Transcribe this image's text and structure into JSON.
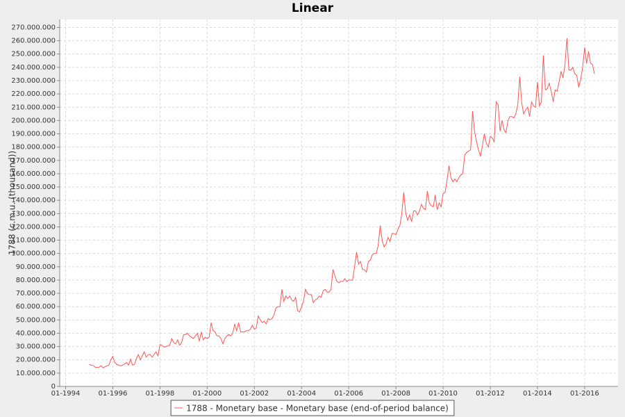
{
  "chart_data": {
    "type": "line",
    "title": "Linear",
    "y_label": "1788 (c.m.u. (thousand))",
    "x": [
      "1995-01",
      "1995-02",
      "1995-03",
      "1995-04",
      "1995-05",
      "1995-06",
      "1995-07",
      "1995-08",
      "1995-09",
      "1995-10",
      "1995-11",
      "1995-12",
      "1996-01",
      "1996-02",
      "1996-03",
      "1996-04",
      "1996-05",
      "1996-06",
      "1996-07",
      "1996-08",
      "1996-09",
      "1996-10",
      "1996-11",
      "1996-12",
      "1997-01",
      "1997-02",
      "1997-03",
      "1997-04",
      "1997-05",
      "1997-06",
      "1997-07",
      "1997-08",
      "1997-09",
      "1997-10",
      "1997-11",
      "1997-12",
      "1998-01",
      "1998-02",
      "1998-03",
      "1998-04",
      "1998-05",
      "1998-06",
      "1998-07",
      "1998-08",
      "1998-09",
      "1998-10",
      "1998-11",
      "1998-12",
      "1999-01",
      "1999-02",
      "1999-03",
      "1999-04",
      "1999-05",
      "1999-06",
      "1999-07",
      "1999-08",
      "1999-09",
      "1999-10",
      "1999-11",
      "1999-12",
      "2000-01",
      "2000-02",
      "2000-03",
      "2000-04",
      "2000-05",
      "2000-06",
      "2000-07",
      "2000-08",
      "2000-09",
      "2000-10",
      "2000-11",
      "2000-12",
      "2001-01",
      "2001-02",
      "2001-03",
      "2001-04",
      "2001-05",
      "2001-06",
      "2001-07",
      "2001-08",
      "2001-09",
      "2001-10",
      "2001-11",
      "2001-12",
      "2002-01",
      "2002-02",
      "2002-03",
      "2002-04",
      "2002-05",
      "2002-06",
      "2002-07",
      "2002-08",
      "2002-09",
      "2002-10",
      "2002-11",
      "2002-12",
      "2003-01",
      "2003-02",
      "2003-03",
      "2003-04",
      "2003-05",
      "2003-06",
      "2003-07",
      "2003-08",
      "2003-09",
      "2003-10",
      "2003-11",
      "2003-12",
      "2004-01",
      "2004-02",
      "2004-03",
      "2004-04",
      "2004-05",
      "2004-06",
      "2004-07",
      "2004-08",
      "2004-09",
      "2004-10",
      "2004-11",
      "2004-12",
      "2005-01",
      "2005-02",
      "2005-03",
      "2005-04",
      "2005-05",
      "2005-06",
      "2005-07",
      "2005-08",
      "2005-09",
      "2005-10",
      "2005-11",
      "2005-12",
      "2006-01",
      "2006-02",
      "2006-03",
      "2006-04",
      "2006-05",
      "2006-06",
      "2006-07",
      "2006-08",
      "2006-09",
      "2006-10",
      "2006-11",
      "2006-12",
      "2007-01",
      "2007-02",
      "2007-03",
      "2007-04",
      "2007-05",
      "2007-06",
      "2007-07",
      "2007-08",
      "2007-09",
      "2007-10",
      "2007-11",
      "2007-12",
      "2008-01",
      "2008-02",
      "2008-03",
      "2008-04",
      "2008-05",
      "2008-06",
      "2008-07",
      "2008-08",
      "2008-09",
      "2008-10",
      "2008-11",
      "2008-12",
      "2009-01",
      "2009-02",
      "2009-03",
      "2009-04",
      "2009-05",
      "2009-06",
      "2009-07",
      "2009-08",
      "2009-09",
      "2009-10",
      "2009-11",
      "2009-12",
      "2010-01",
      "2010-02",
      "2010-03",
      "2010-04",
      "2010-05",
      "2010-06",
      "2010-07",
      "2010-08",
      "2010-09",
      "2010-10",
      "2010-11",
      "2010-12",
      "2011-01",
      "2011-02",
      "2011-03",
      "2011-04",
      "2011-05",
      "2011-06",
      "2011-07",
      "2011-08",
      "2011-09",
      "2011-10",
      "2011-11",
      "2011-12",
      "2012-01",
      "2012-02",
      "2012-03",
      "2012-04",
      "2012-05",
      "2012-06",
      "2012-07",
      "2012-08",
      "2012-09",
      "2012-10",
      "2012-11",
      "2012-12",
      "2013-01",
      "2013-02",
      "2013-03",
      "2013-04",
      "2013-05",
      "2013-06",
      "2013-07",
      "2013-08",
      "2013-09",
      "2013-10",
      "2013-11",
      "2013-12",
      "2014-01",
      "2014-02",
      "2014-03",
      "2014-04",
      "2014-05",
      "2014-06",
      "2014-07",
      "2014-08",
      "2014-09",
      "2014-10",
      "2014-11",
      "2014-12",
      "2015-01",
      "2015-02",
      "2015-03",
      "2015-04",
      "2015-05",
      "2015-06",
      "2015-07",
      "2015-08",
      "2015-09",
      "2015-10",
      "2015-11",
      "2015-12",
      "2016-01",
      "2016-02",
      "2016-03",
      "2016-04",
      "2016-05",
      "2016-06"
    ],
    "series": [
      {
        "name": "1788 - Monetary base - Monetary base (end-of-period balance)",
        "color": "#ff5555",
        "values": [
          16500000,
          16000000,
          15800000,
          14500000,
          14200000,
          14500000,
          15500000,
          14000000,
          14800000,
          15500000,
          16000000,
          20000000,
          22500000,
          18000000,
          16500000,
          16000000,
          15500000,
          16000000,
          17000000,
          18000000,
          16000000,
          20500000,
          16000000,
          16500000,
          21000000,
          24000000,
          20000000,
          23000000,
          26000000,
          22000000,
          24000000,
          24000000,
          22000000,
          24000000,
          26000000,
          23000000,
          31500000,
          31000000,
          29500000,
          30000000,
          30500000,
          31000000,
          36000000,
          33000000,
          32000000,
          35000000,
          31000000,
          33000000,
          39000000,
          39000000,
          40000000,
          38000000,
          37000000,
          36000000,
          38000000,
          40000000,
          34000000,
          41000000,
          35000000,
          37000000,
          36000000,
          37000000,
          48000000,
          42000000,
          41000000,
          38000000,
          38000000,
          36000000,
          32000000,
          36000000,
          38000000,
          39000000,
          38000000,
          40000000,
          47000000,
          42000000,
          48000000,
          41000000,
          41000000,
          41000000,
          42000000,
          42000000,
          43000000,
          46000000,
          43000000,
          44000000,
          53000000,
          50000000,
          48000000,
          49000000,
          47000000,
          51000000,
          50000000,
          51000000,
          54000000,
          59000000,
          60000000,
          60000000,
          73000000,
          64000000,
          68000000,
          66000000,
          68000000,
          65000000,
          64000000,
          67000000,
          57000000,
          56000000,
          60000000,
          64000000,
          73000000,
          70000000,
          69000000,
          69000000,
          63000000,
          65000000,
          66000000,
          68000000,
          67000000,
          72000000,
          73000000,
          71000000,
          71000000,
          73000000,
          88000000,
          83000000,
          79000000,
          78000000,
          79000000,
          79000000,
          81000000,
          79000000,
          80000000,
          80000000,
          80000000,
          90000000,
          101000000,
          92000000,
          94000000,
          88000000,
          88000000,
          86000000,
          94000000,
          95000000,
          99000000,
          100000000,
          100000000,
          106000000,
          121000000,
          110000000,
          105000000,
          107000000,
          112000000,
          109000000,
          115000000,
          115000000,
          114000000,
          118000000,
          121000000,
          130000000,
          146000000,
          130000000,
          125000000,
          129000000,
          124000000,
          132000000,
          132000000,
          129000000,
          132000000,
          137000000,
          134000000,
          133000000,
          147000000,
          138000000,
          136000000,
          135000000,
          144000000,
          133000000,
          138000000,
          135000000,
          145000000,
          146000000,
          155000000,
          166000000,
          157000000,
          154000000,
          156000000,
          154000000,
          157000000,
          159000000,
          160000000,
          174000000,
          176000000,
          177000000,
          178000000,
          207000000,
          192000000,
          184000000,
          178000000,
          173000000,
          181000000,
          190000000,
          183000000,
          180000000,
          188000000,
          187000000,
          184000000,
          214000000,
          212000000,
          192000000,
          200000000,
          193000000,
          191000000,
          200000000,
          203000000,
          203000000,
          202000000,
          205000000,
          212000000,
          233000000,
          213000000,
          205000000,
          208000000,
          210000000,
          203000000,
          214000000,
          211000000,
          210000000,
          229000000,
          211000000,
          214000000,
          249000000,
          223000000,
          224000000,
          228000000,
          222000000,
          214000000,
          223000000,
          222000000,
          229000000,
          237000000,
          232000000,
          242000000,
          262000000,
          238000000,
          238000000,
          240000000,
          235000000,
          234000000,
          225000000,
          231000000,
          240000000,
          255000000,
          243000000,
          252000000,
          243000000,
          242000000,
          235000000
        ]
      }
    ],
    "xlim": [
      "1993-10",
      "2017-06"
    ],
    "xticks": [
      {
        "value": "1994-01",
        "label": "01-1994"
      },
      {
        "value": "1996-01",
        "label": "01-1996"
      },
      {
        "value": "1998-01",
        "label": "01-1998"
      },
      {
        "value": "2000-01",
        "label": "01-2000"
      },
      {
        "value": "2002-01",
        "label": "01-2002"
      },
      {
        "value": "2004-01",
        "label": "01-2004"
      },
      {
        "value": "2006-01",
        "label": "01-2006"
      },
      {
        "value": "2008-01",
        "label": "01-2008"
      },
      {
        "value": "2010-01",
        "label": "01-2010"
      },
      {
        "value": "2012-01",
        "label": "01-2012"
      },
      {
        "value": "2014-01",
        "label": "01-2014"
      },
      {
        "value": "2016-01",
        "label": "01-2016"
      }
    ],
    "ylim": [
      0,
      276000000
    ],
    "yticks": [
      0,
      {
        "value": 10000000,
        "label": "10.000.000"
      },
      {
        "value": 20000000,
        "label": "20.000.000"
      },
      {
        "value": 30000000,
        "label": "30.000.000"
      },
      {
        "value": 40000000,
        "label": "40.000.000"
      },
      {
        "value": 50000000,
        "label": "50.000.000"
      },
      {
        "value": 60000000,
        "label": "60.000.000"
      },
      {
        "value": 70000000,
        "label": "70.000.000"
      },
      {
        "value": 80000000,
        "label": "80.000.000"
      },
      {
        "value": 90000000,
        "label": "90.000.000"
      },
      {
        "value": 100000000,
        "label": "100.000.000"
      },
      {
        "value": 110000000,
        "label": "110.000.000"
      },
      {
        "value": 120000000,
        "label": "120.000.000"
      },
      {
        "value": 130000000,
        "label": "130.000.000"
      },
      {
        "value": 140000000,
        "label": "140.000.000"
      },
      {
        "value": 150000000,
        "label": "150.000.000"
      },
      {
        "value": 160000000,
        "label": "160.000.000"
      },
      {
        "value": 170000000,
        "label": "170.000.000"
      },
      {
        "value": 180000000,
        "label": "180.000.000"
      },
      {
        "value": 190000000,
        "label": "190.000.000"
      },
      {
        "value": 200000000,
        "label": "200.000.000"
      },
      {
        "value": 210000000,
        "label": "210.000.000"
      },
      {
        "value": 220000000,
        "label": "220.000.000"
      },
      {
        "value": 230000000,
        "label": "230.000.000"
      },
      {
        "value": 240000000,
        "label": "240.000.000"
      },
      {
        "value": 250000000,
        "label": "250.000.000"
      },
      {
        "value": 260000000,
        "label": "260.000.000"
      },
      {
        "value": 270000000,
        "label": "270.000.000"
      }
    ],
    "grid": true,
    "legend": "bottom"
  }
}
